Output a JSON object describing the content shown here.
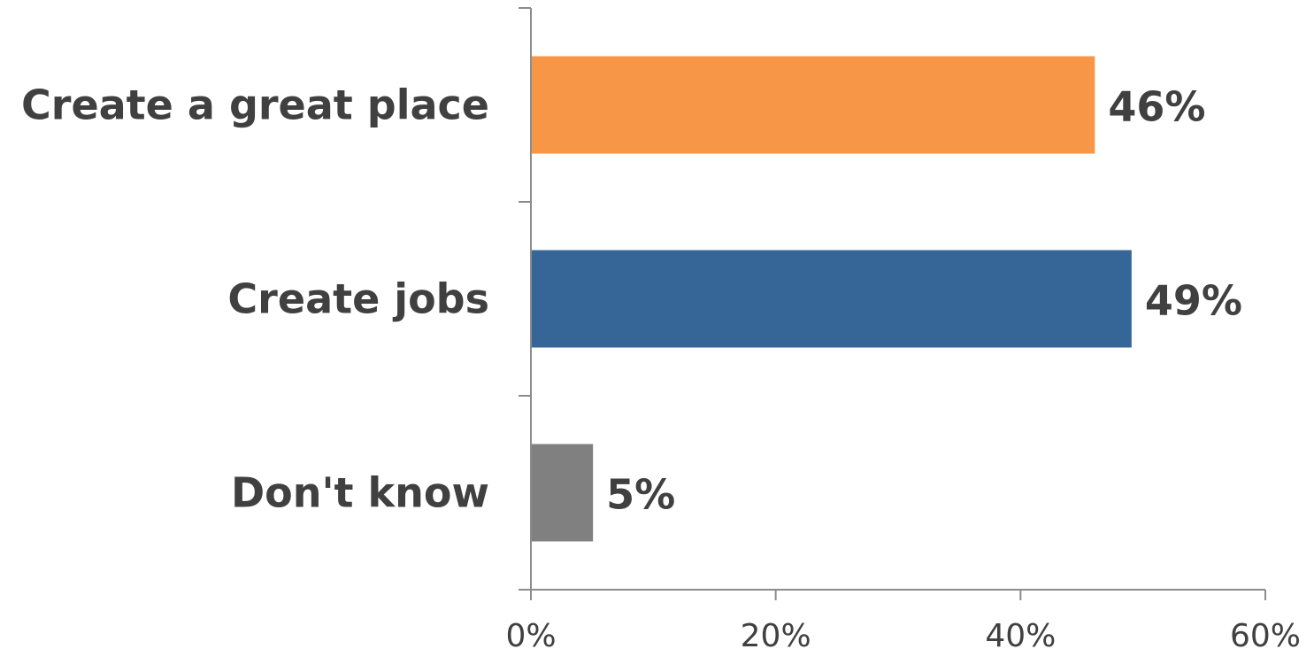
{
  "chart_data": {
    "type": "bar",
    "orientation": "horizontal",
    "categories": [
      "Create a great place",
      "Create jobs",
      "Don't know"
    ],
    "values": [
      46,
      49,
      5
    ],
    "value_labels": [
      "46%",
      "49%",
      "5%"
    ],
    "colors": [
      "#F79646",
      "#356697",
      "#808080"
    ],
    "xlim": [
      0,
      60
    ],
    "x_ticks": [
      0,
      20,
      40,
      60
    ],
    "x_tick_labels": [
      "0%",
      "20%",
      "40%",
      "60%"
    ],
    "grid": false,
    "legend": "none",
    "title": "",
    "xlabel": "",
    "ylabel": ""
  }
}
